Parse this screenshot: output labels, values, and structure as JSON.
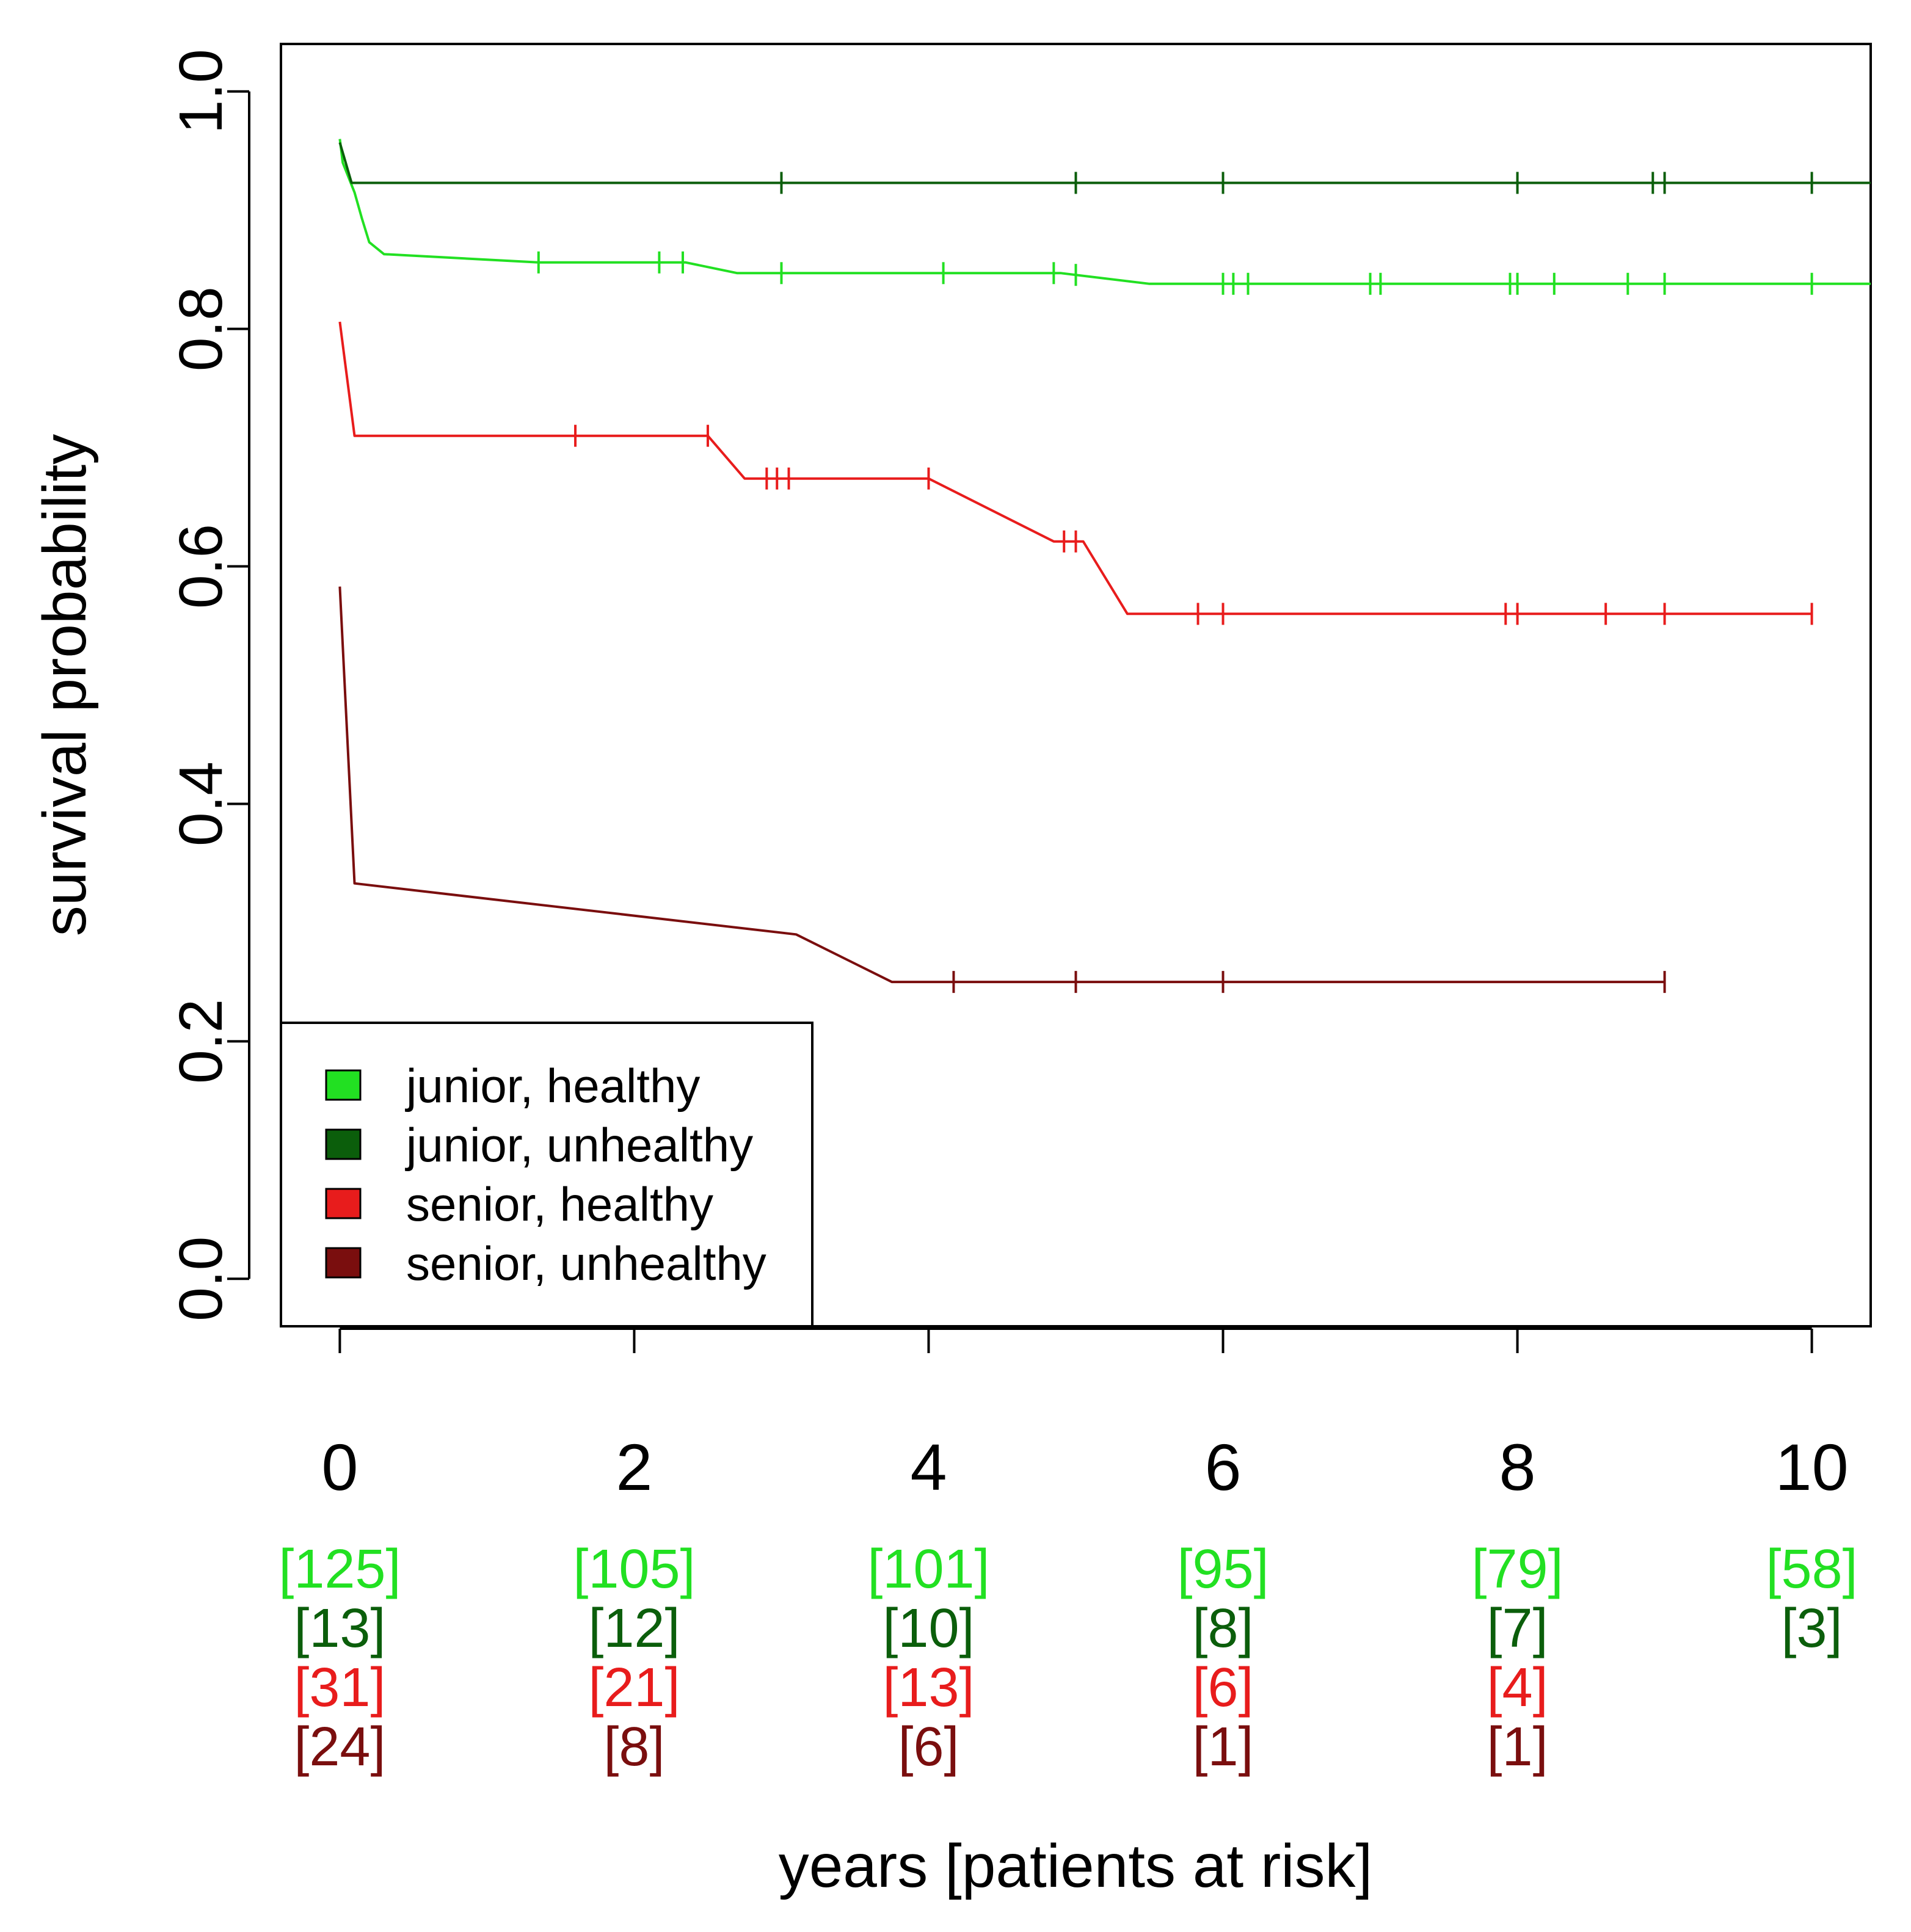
{
  "chart_data": {
    "type": "line",
    "subtype": "kaplan-meier",
    "title": "",
    "xlabel": "years [patients at risk]",
    "ylabel": "survival probability",
    "xlim": [
      -0.4,
      10.4
    ],
    "ylim": [
      -0.04,
      1.04
    ],
    "x_ticks": [
      0,
      2,
      4,
      6,
      8,
      10
    ],
    "x_tick_labels": [
      "0",
      "2",
      "4",
      "6",
      "8",
      "10"
    ],
    "y_ticks": [
      0.0,
      0.2,
      0.4,
      0.6,
      0.8,
      1.0
    ],
    "y_tick_labels": [
      "0.0",
      "0.2",
      "0.4",
      "0.6",
      "0.8",
      "1.0"
    ],
    "grid": false,
    "legend_position": "bottom-left",
    "series": [
      {
        "name": "junior, healthy",
        "color": "#22e022",
        "points": [
          [
            0.0,
            0.96
          ],
          [
            0.02,
            0.94
          ],
          [
            0.1,
            0.915
          ],
          [
            0.15,
            0.893
          ],
          [
            0.2,
            0.873
          ],
          [
            0.3,
            0.863
          ],
          [
            1.35,
            0.856
          ],
          [
            2.35,
            0.856
          ],
          [
            2.7,
            0.847
          ],
          [
            4.9,
            0.847
          ],
          [
            5.5,
            0.838
          ],
          [
            10.4,
            0.838
          ]
        ],
        "censor_times": [
          1.35,
          2.17,
          2.33,
          3.0,
          4.1,
          4.85,
          5.0,
          6.0,
          6.07,
          6.17,
          7.0,
          7.07,
          7.95,
          8.0,
          8.25,
          8.75,
          9.0,
          10.0
        ],
        "at_risk": [
          "[125]",
          "[105]",
          "[101]",
          "[95]",
          "[79]",
          "[58]"
        ]
      },
      {
        "name": "junior, unhealthy",
        "color": "#0b5e0b",
        "points": [
          [
            0.0,
            0.957
          ],
          [
            0.08,
            0.923
          ],
          [
            10.4,
            0.923
          ]
        ],
        "censor_times": [
          3.0,
          5.0,
          6.0,
          8.0,
          8.92,
          9.0,
          10.0
        ],
        "at_risk": [
          "[13]",
          "[12]",
          "[10]",
          "[8]",
          "[7]",
          "[3]"
        ]
      },
      {
        "name": "senior, healthy",
        "color": "#e81c1c",
        "points": [
          [
            0.0,
            0.806
          ],
          [
            0.1,
            0.71
          ],
          [
            2.5,
            0.71
          ],
          [
            2.75,
            0.674
          ],
          [
            4.0,
            0.674
          ],
          [
            4.85,
            0.621
          ],
          [
            5.05,
            0.621
          ],
          [
            5.35,
            0.56
          ],
          [
            10.0,
            0.56
          ]
        ],
        "censor_times": [
          1.6,
          2.5,
          2.9,
          2.97,
          3.05,
          4.0,
          4.92,
          5.0,
          5.83,
          6.0,
          7.92,
          8.0,
          8.6,
          9.0,
          10.0
        ],
        "at_risk": [
          "[31]",
          "[21]",
          "[13]",
          "[6]",
          "[4]",
          ""
        ]
      },
      {
        "name": "senior, unhealthy",
        "color": "#7a0e0e",
        "points": [
          [
            0.0,
            0.583
          ],
          [
            0.1,
            0.333
          ],
          [
            3.1,
            0.29
          ],
          [
            3.75,
            0.25
          ],
          [
            9.0,
            0.25
          ]
        ],
        "censor_times": [
          4.17,
          5.0,
          6.0,
          9.0
        ],
        "at_risk": [
          "[24]",
          "[8]",
          "[6]",
          "[1]",
          "[1]",
          ""
        ]
      }
    ]
  }
}
